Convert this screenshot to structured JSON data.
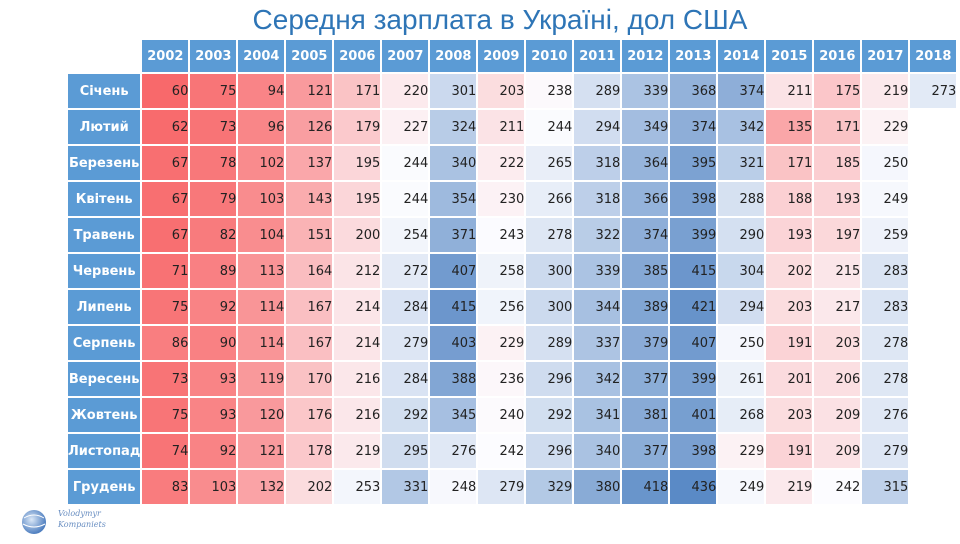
{
  "title": "Середня зарплата в Україні, дол США",
  "logo": {
    "line1": "Volodymyr",
    "line2": "Kompaniets"
  },
  "chart_data": {
    "type": "heatmap",
    "title": "Середня зарплата в Україні, дол США",
    "columns": [
      "2002",
      "2003",
      "2004",
      "2005",
      "2006",
      "2007",
      "2008",
      "2009",
      "2010",
      "2011",
      "2012",
      "2013",
      "2014",
      "2015",
      "2016",
      "2017",
      "2018"
    ],
    "rows": [
      "Січень",
      "Лютий",
      "Березень",
      "Квітень",
      "Травень",
      "Червень",
      "Липень",
      "Серпень",
      "Вересень",
      "Жовтень",
      "Листопад",
      "Грудень"
    ],
    "values": [
      [
        60,
        75,
        94,
        121,
        171,
        220,
        301,
        203,
        238,
        289,
        339,
        368,
        374,
        211,
        175,
        219,
        273
      ],
      [
        62,
        73,
        96,
        126,
        179,
        227,
        324,
        211,
        244,
        294,
        349,
        374,
        342,
        135,
        171,
        229,
        null
      ],
      [
        67,
        78,
        102,
        137,
        195,
        244,
        340,
        222,
        265,
        318,
        364,
        395,
        321,
        171,
        185,
        250,
        null
      ],
      [
        67,
        79,
        103,
        143,
        195,
        244,
        354,
        230,
        266,
        318,
        366,
        398,
        288,
        188,
        193,
        249,
        null
      ],
      [
        67,
        82,
        104,
        151,
        200,
        254,
        371,
        243,
        278,
        322,
        374,
        399,
        290,
        193,
        197,
        259,
        null
      ],
      [
        71,
        89,
        113,
        164,
        212,
        272,
        407,
        258,
        300,
        339,
        385,
        415,
        304,
        202,
        215,
        283,
        null
      ],
      [
        75,
        92,
        114,
        167,
        214,
        284,
        415,
        256,
        300,
        344,
        389,
        421,
        294,
        203,
        217,
        283,
        null
      ],
      [
        86,
        90,
        114,
        167,
        214,
        279,
        403,
        229,
        289,
        337,
        379,
        407,
        250,
        191,
        203,
        278,
        null
      ],
      [
        73,
        93,
        119,
        170,
        216,
        284,
        388,
        236,
        296,
        342,
        377,
        399,
        261,
        201,
        206,
        278,
        null
      ],
      [
        75,
        93,
        120,
        176,
        216,
        292,
        345,
        240,
        292,
        341,
        381,
        401,
        268,
        203,
        209,
        276,
        null
      ],
      [
        74,
        92,
        121,
        178,
        219,
        295,
        276,
        242,
        296,
        340,
        377,
        398,
        229,
        191,
        209,
        279,
        null
      ],
      [
        83,
        103,
        132,
        202,
        253,
        331,
        248,
        279,
        329,
        380,
        418,
        436,
        249,
        219,
        242,
        315,
        null
      ]
    ],
    "color_scale": {
      "low": "#f8696b",
      "mid": "#fcfcff",
      "high": "#5a8ac6"
    }
  }
}
